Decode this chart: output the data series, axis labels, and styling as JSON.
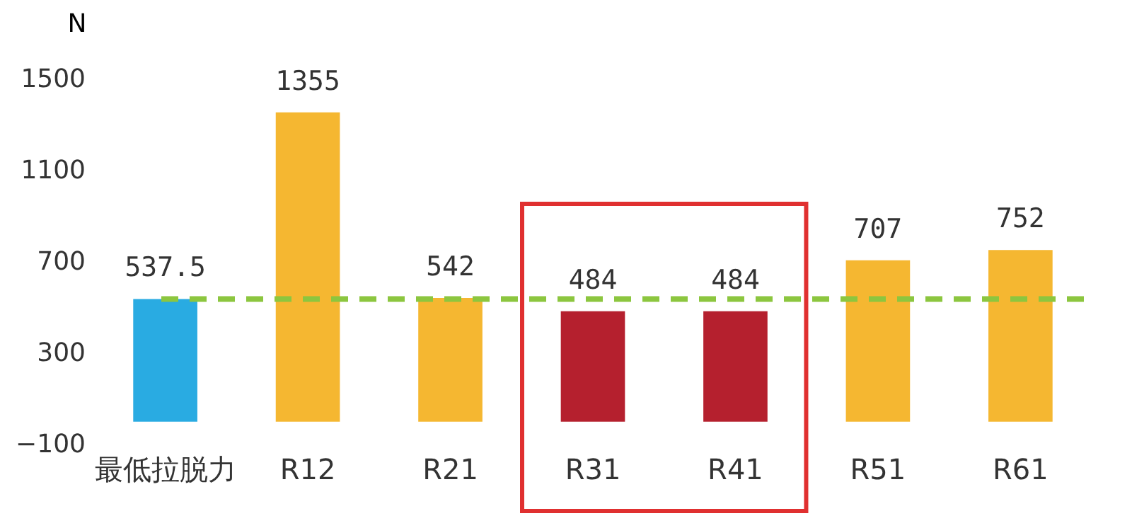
{
  "chart_data": {
    "type": "bar",
    "ylabel": "N",
    "categories": [
      "最低拉脱力",
      "R12",
      "R21",
      "R31",
      "R41",
      "R51",
      "R61"
    ],
    "values": [
      537.5,
      1355,
      542,
      484,
      484,
      707,
      752
    ],
    "colors": [
      "#29abe2",
      "#f5b731",
      "#f5b731",
      "#b5202e",
      "#b5202e",
      "#f5b731",
      "#f5b731"
    ],
    "ylim": [
      -100,
      1500
    ],
    "yticks": [
      -100,
      300,
      700,
      1100,
      1500
    ],
    "data_labels": true,
    "grid": false,
    "ref_lines": [
      {
        "axis": "y",
        "value": 537.5,
        "color": "#8cc63f",
        "line_style": "dashed"
      }
    ]
  }
}
